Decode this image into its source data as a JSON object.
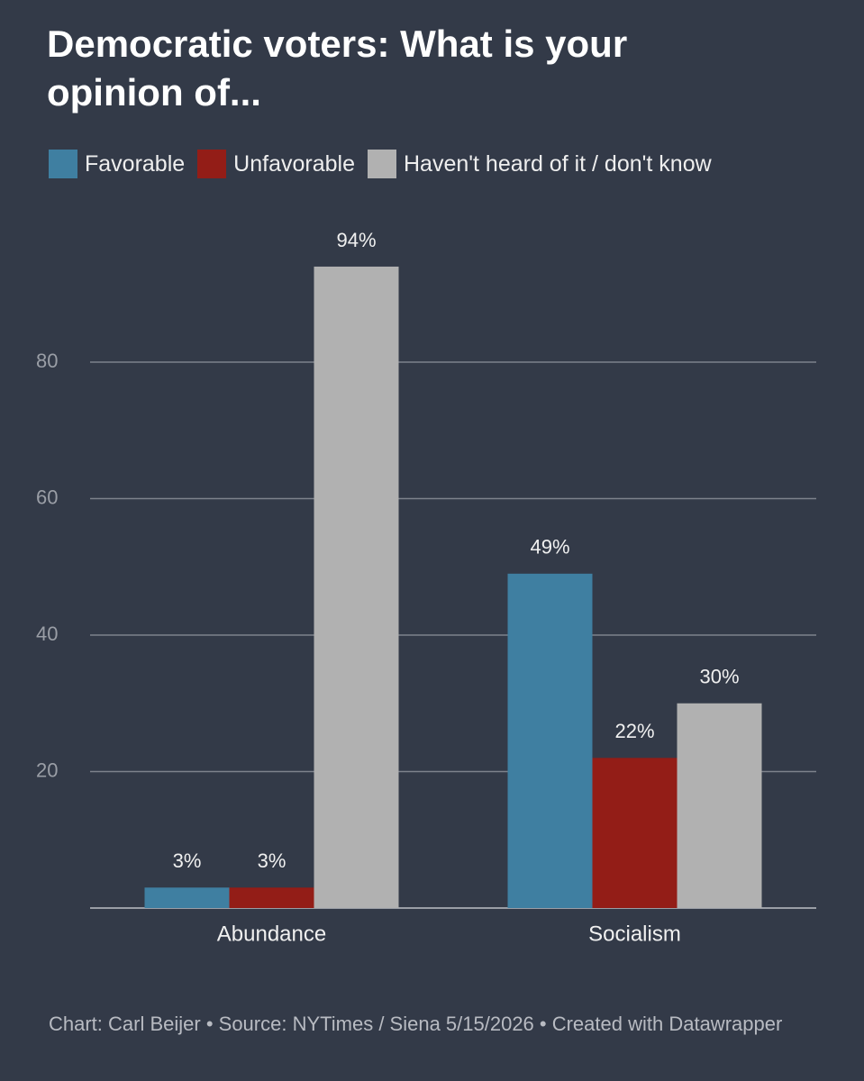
{
  "chart_data": {
    "type": "bar",
    "title": "Democratic voters: What is your opinion of...",
    "categories": [
      "Abundance",
      "Socialism"
    ],
    "series": [
      {
        "name": "Favorable",
        "color": "#3f7fa1",
        "values": [
          3,
          49
        ],
        "value_labels": [
          "3%",
          "49%"
        ]
      },
      {
        "name": "Unfavorable",
        "color": "#931d17",
        "values": [
          3,
          22
        ],
        "value_labels": [
          "3%",
          "22%"
        ]
      },
      {
        "name": "Haven't heard of it / don't know",
        "color": "#b1b1b1",
        "values": [
          94,
          30
        ],
        "value_labels": [
          "94%",
          "30%"
        ]
      }
    ],
    "ylim": [
      0,
      100
    ],
    "yticks": [
      20,
      40,
      60,
      80
    ],
    "grid": true,
    "footer": "Chart: Carl Beijer • Source: NYTimes / Siena 5/15/2026 • Created with Datawrapper"
  }
}
